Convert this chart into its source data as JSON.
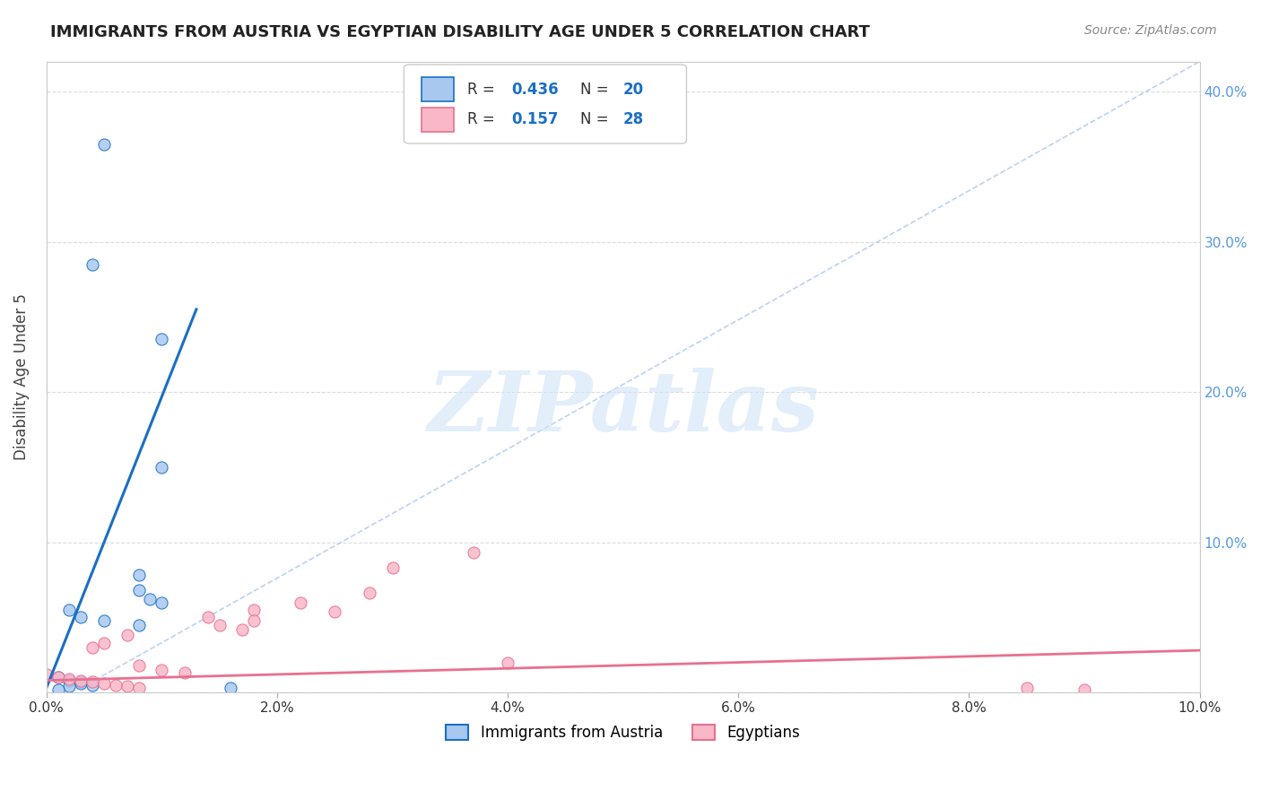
{
  "title": "IMMIGRANTS FROM AUSTRIA VS EGYPTIAN DISABILITY AGE UNDER 5 CORRELATION CHART",
  "source": "Source: ZipAtlas.com",
  "ylabel": "Disability Age Under 5",
  "legend_labels": [
    "Immigrants from Austria",
    "Egyptians"
  ],
  "xlim": [
    0,
    0.1
  ],
  "ylim": [
    0,
    0.42
  ],
  "xticks": [
    0.0,
    0.02,
    0.04,
    0.06,
    0.08,
    0.1
  ],
  "yticks_right": [
    0.0,
    0.1,
    0.2,
    0.3,
    0.4
  ],
  "xtick_labels": [
    "0.0%",
    "2.0%",
    "4.0%",
    "6.0%",
    "8.0%",
    "10.0%"
  ],
  "ytick_labels_right": [
    "",
    "10.0%",
    "20.0%",
    "30.0%",
    "40.0%"
  ],
  "watermark": "ZIPatlas",
  "austria_r": "0.436",
  "austria_n": "20",
  "egypt_r": "0.157",
  "egypt_n": "28",
  "austria_points": [
    [
      0.005,
      0.365
    ],
    [
      0.004,
      0.285
    ],
    [
      0.01,
      0.235
    ],
    [
      0.01,
      0.15
    ],
    [
      0.008,
      0.078
    ],
    [
      0.008,
      0.068
    ],
    [
      0.009,
      0.062
    ],
    [
      0.01,
      0.06
    ],
    [
      0.002,
      0.055
    ],
    [
      0.003,
      0.05
    ],
    [
      0.005,
      0.048
    ],
    [
      0.008,
      0.045
    ],
    [
      0.001,
      0.01
    ],
    [
      0.002,
      0.008
    ],
    [
      0.003,
      0.007
    ],
    [
      0.003,
      0.006
    ],
    [
      0.004,
      0.005
    ],
    [
      0.002,
      0.004
    ],
    [
      0.016,
      0.003
    ],
    [
      0.001,
      0.002
    ]
  ],
  "egypt_points": [
    [
      0.037,
      0.093
    ],
    [
      0.03,
      0.083
    ],
    [
      0.028,
      0.066
    ],
    [
      0.022,
      0.06
    ],
    [
      0.018,
      0.055
    ],
    [
      0.025,
      0.054
    ],
    [
      0.014,
      0.05
    ],
    [
      0.018,
      0.048
    ],
    [
      0.015,
      0.045
    ],
    [
      0.017,
      0.042
    ],
    [
      0.007,
      0.038
    ],
    [
      0.005,
      0.033
    ],
    [
      0.004,
      0.03
    ],
    [
      0.008,
      0.018
    ],
    [
      0.01,
      0.015
    ],
    [
      0.012,
      0.013
    ],
    [
      0.0,
      0.012
    ],
    [
      0.001,
      0.01
    ],
    [
      0.002,
      0.009
    ],
    [
      0.003,
      0.008
    ],
    [
      0.004,
      0.007
    ],
    [
      0.005,
      0.006
    ],
    [
      0.006,
      0.005
    ],
    [
      0.007,
      0.004
    ],
    [
      0.04,
      0.02
    ],
    [
      0.008,
      0.003
    ],
    [
      0.085,
      0.003
    ],
    [
      0.09,
      0.002
    ]
  ],
  "austria_line_color": "#1a6fc4",
  "egypt_line_color": "#e87090",
  "austria_scatter_color": "#a8c8f0",
  "egypt_scatter_color": "#f8b8c8",
  "grid_color": "#cccccc",
  "bg_color": "#ffffff",
  "title_color": "#222222",
  "right_axis_color": "#5599dd",
  "watermark_color": "#d0e4f7",
  "austria_line_x": [
    0.0,
    0.013
  ],
  "austria_line_y": [
    0.003,
    0.255
  ],
  "egypt_line_x": [
    0.0,
    0.1
  ],
  "egypt_line_y": [
    0.008,
    0.028
  ],
  "dash_line_x": [
    0.003,
    0.1
  ],
  "dash_line_y": [
    0.003,
    0.42
  ]
}
